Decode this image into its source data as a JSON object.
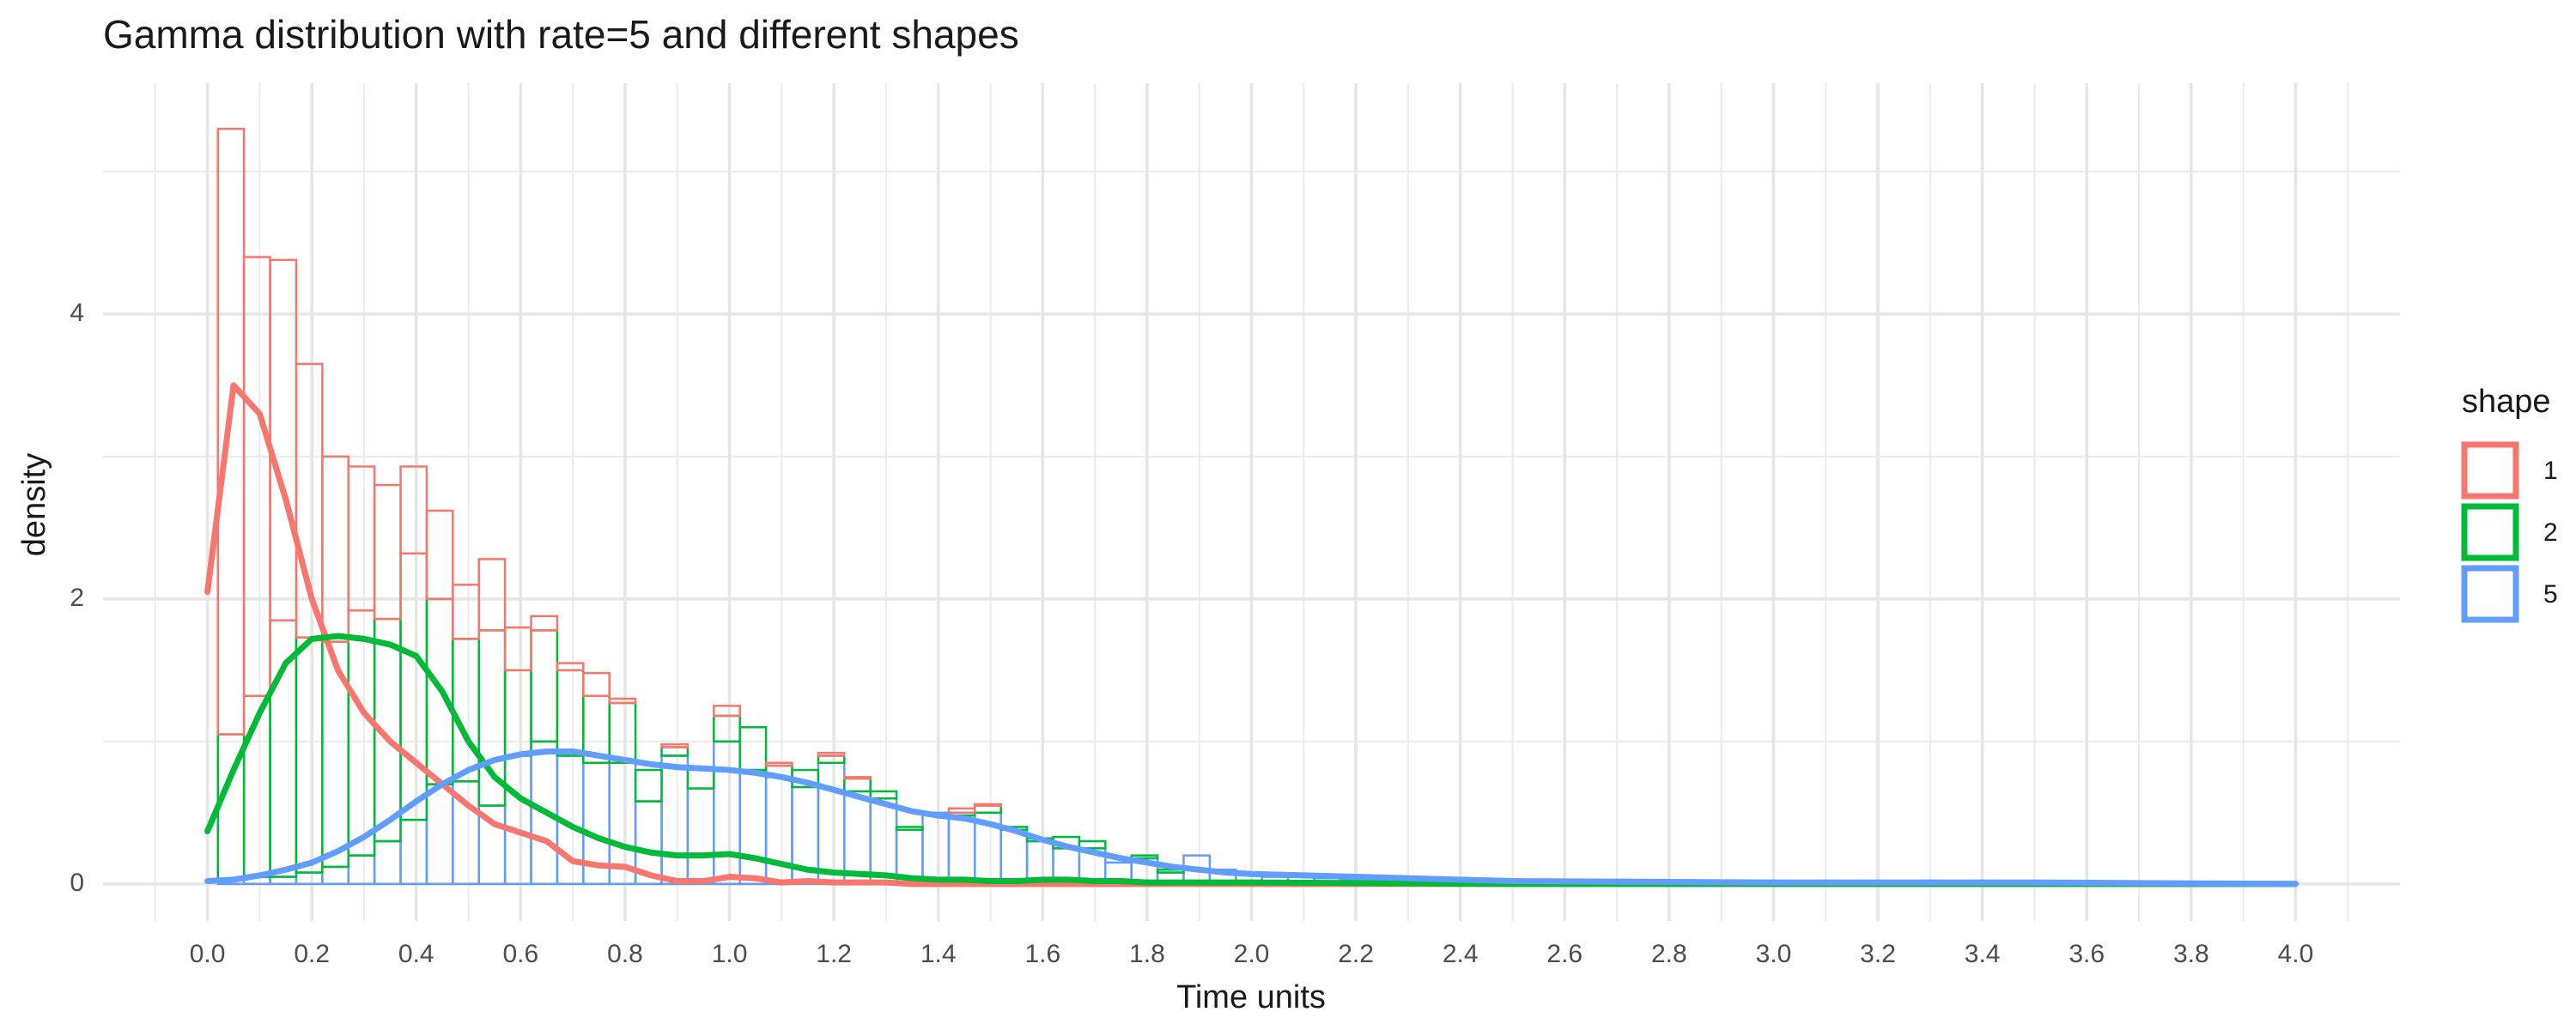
{
  "chart_data": {
    "type": "histogram",
    "title": "Gamma distribution with rate=5 and different shapes",
    "x_label": "Time units",
    "y_label": "density",
    "legend_title": "shape",
    "legend": "right",
    "grid": true,
    "stacked": true,
    "xlim": [
      -0.2,
      4.2
    ],
    "ylim": [
      -0.26,
      5.62
    ],
    "xticks": [
      {
        "value": 0,
        "label": "0.0"
      },
      0.2,
      0.4,
      0.6,
      0.8,
      {
        "value": 1,
        "label": "1.0"
      },
      1.2,
      1.4,
      1.6,
      1.8,
      {
        "value": 2,
        "label": "2.0"
      },
      2.2,
      2.4,
      2.6,
      2.8,
      {
        "value": 3,
        "label": "3.0"
      },
      3.2,
      3.4,
      3.6,
      3.8,
      {
        "value": 4,
        "label": "4.0"
      }
    ],
    "minor_xticks": [
      -0.1,
      0.1,
      0.3,
      0.5,
      0.7,
      0.9,
      1.1,
      1.3,
      1.5,
      1.7,
      1.9,
      2.1,
      2.3,
      2.5,
      2.7,
      2.9,
      3.1,
      3.3,
      3.5,
      3.7,
      3.9,
      4.1
    ],
    "yticks": [
      0,
      2,
      4
    ],
    "minor_yticks": [
      1,
      3,
      5
    ],
    "bins": [
      0.02,
      0.07,
      0.12,
      0.17,
      0.22,
      0.27,
      0.32,
      0.37,
      0.42,
      0.47,
      0.52,
      0.57,
      0.62,
      0.67,
      0.72,
      0.77,
      0.82,
      0.87,
      0.92,
      0.97,
      1.02,
      1.07,
      1.12,
      1.17,
      1.22,
      1.27,
      1.32,
      1.37,
      1.42,
      1.47,
      1.52,
      1.57,
      1.62,
      1.67,
      1.72,
      1.77,
      1.82,
      1.87,
      1.92,
      1.97,
      2.02,
      2.07,
      2.12,
      2.17,
      2.22,
      2.27,
      2.32,
      2.37,
      2.42,
      2.47,
      2.52
    ],
    "density_x": [
      0,
      0.05,
      0.1,
      0.15,
      0.2,
      0.25,
      0.3,
      0.35,
      0.4,
      0.45,
      0.5,
      0.55,
      0.6,
      0.65,
      0.7,
      0.75,
      0.8,
      0.85,
      0.9,
      0.95,
      1.0,
      1.05,
      1.1,
      1.15,
      1.2,
      1.25,
      1.3,
      1.35,
      1.4,
      1.45,
      1.5,
      1.55,
      1.6,
      1.65,
      1.7,
      1.75,
      1.8,
      1.85,
      1.9,
      1.95,
      2.0,
      2.5,
      3.0,
      3.5,
      4.0
    ],
    "series": [
      {
        "name": "5",
        "color": "#619CFF",
        "values": [
          0.03,
          0.05,
          0.05,
          0.08,
          0.12,
          0.2,
          0.3,
          0.45,
          0.7,
          0.72,
          0.55,
          0.9,
          1.0,
          0.9,
          0.85,
          0.85,
          0.58,
          0.9,
          0.67,
          1.0,
          0.8,
          0.75,
          0.68,
          0.85,
          0.65,
          0.6,
          0.38,
          0.5,
          0.48,
          0.5,
          0.38,
          0.3,
          0.25,
          0.25,
          0.15,
          0.18,
          0.08,
          0.2,
          0.1,
          0.08,
          0.05,
          0.05,
          0.04,
          0.03,
          0.03,
          0.02,
          0.02,
          0.02,
          0.01,
          0.01
        ],
        "density": [
          0.02,
          0.03,
          0.06,
          0.1,
          0.15,
          0.23,
          0.33,
          0.45,
          0.58,
          0.7,
          0.8,
          0.87,
          0.91,
          0.93,
          0.93,
          0.9,
          0.87,
          0.84,
          0.82,
          0.81,
          0.8,
          0.78,
          0.75,
          0.71,
          0.66,
          0.61,
          0.56,
          0.51,
          0.48,
          0.46,
          0.42,
          0.37,
          0.31,
          0.26,
          0.22,
          0.18,
          0.15,
          0.12,
          0.1,
          0.08,
          0.07,
          0.02,
          0.01,
          0.01,
          0
        ]
      },
      {
        "name": "2",
        "color": "#00BA38",
        "values": [
          1.02,
          1.27,
          1.8,
          1.65,
          1.58,
          1.72,
          1.56,
          1.87,
          1.3,
          1.0,
          1.23,
          0.6,
          0.78,
          0.6,
          0.47,
          0.42,
          0.22,
          0.06,
          0.15,
          0.18,
          0.3,
          0.08,
          0.12,
          0.05,
          0.09,
          0.05,
          0.02,
          0,
          0.02,
          0.05,
          0.02,
          0.02,
          0.08,
          0.05,
          0,
          0.02,
          0.02,
          0,
          0,
          0,
          0,
          0,
          0,
          0,
          0,
          0,
          0,
          0,
          0,
          0
        ],
        "density": [
          0.37,
          0.8,
          1.2,
          1.55,
          1.72,
          1.74,
          1.72,
          1.68,
          1.6,
          1.35,
          1.0,
          0.75,
          0.6,
          0.5,
          0.4,
          0.32,
          0.26,
          0.22,
          0.2,
          0.2,
          0.21,
          0.18,
          0.14,
          0.1,
          0.08,
          0.07,
          0.06,
          0.04,
          0.03,
          0.03,
          0.02,
          0.02,
          0.03,
          0.03,
          0.02,
          0.02,
          0.01,
          0.01,
          0.01,
          0.01,
          0.01,
          0,
          0,
          0,
          0
        ]
      },
      {
        "name": "1",
        "color": "#F8766D",
        "values": [
          4.25,
          3.08,
          2.53,
          1.92,
          1.3,
          1.01,
          0.94,
          0.61,
          0.62,
          0.38,
          0.5,
          0.3,
          0.1,
          0.05,
          0.16,
          0.03,
          0,
          0.02,
          0,
          0.07,
          0,
          0.02,
          0,
          0.02,
          0.01,
          0,
          0,
          0,
          0.03,
          0.01,
          0,
          0,
          0,
          0,
          0,
          0,
          0,
          0,
          0,
          0,
          0,
          0,
          0,
          0,
          0,
          0,
          0,
          0,
          0,
          0
        ],
        "density": [
          2.05,
          3.5,
          3.3,
          2.7,
          2.0,
          1.5,
          1.2,
          1.0,
          0.85,
          0.7,
          0.55,
          0.42,
          0.36,
          0.3,
          0.16,
          0.13,
          0.12,
          0.06,
          0.02,
          0.02,
          0.05,
          0.04,
          0.01,
          0.02,
          0.01,
          0.01,
          0.01,
          0,
          0,
          0,
          0,
          0,
          0,
          0,
          0,
          0,
          0,
          0,
          0,
          0,
          0,
          0,
          0,
          0,
          0
        ]
      }
    ]
  }
}
